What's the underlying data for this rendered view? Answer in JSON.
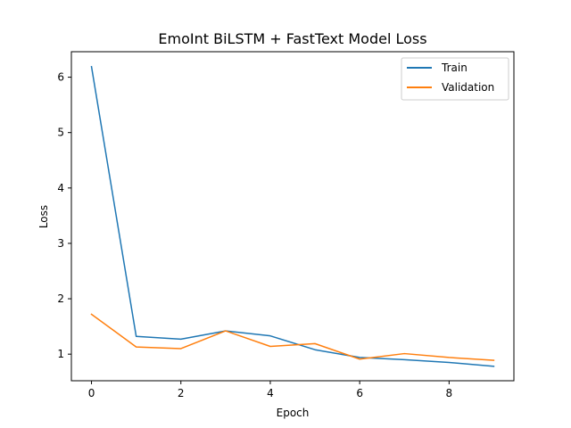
{
  "chart_data": {
    "type": "line",
    "title": "EmoInt BiLSTM + FastText Model Loss",
    "xlabel": "Epoch",
    "ylabel": "Loss",
    "x": [
      0,
      1,
      2,
      3,
      4,
      5,
      6,
      7,
      8,
      9
    ],
    "xlim": [
      -0.45,
      9.45
    ],
    "ylim": [
      0.52,
      6.46
    ],
    "xticks": [
      "0",
      "2",
      "4",
      "6",
      "8"
    ],
    "yticks": [
      "1",
      "2",
      "3",
      "4",
      "5",
      "6"
    ],
    "grid": false,
    "legend_position": "top-right",
    "series": [
      {
        "name": "Train",
        "color": "#1f77b4",
        "values": [
          6.19,
          1.32,
          1.27,
          1.42,
          1.33,
          1.08,
          0.94,
          0.9,
          0.85,
          0.78
        ]
      },
      {
        "name": "Validation",
        "color": "#ff7f0e",
        "values": [
          1.72,
          1.13,
          1.1,
          1.42,
          1.14,
          1.19,
          0.91,
          1.01,
          0.94,
          0.89
        ]
      }
    ]
  }
}
